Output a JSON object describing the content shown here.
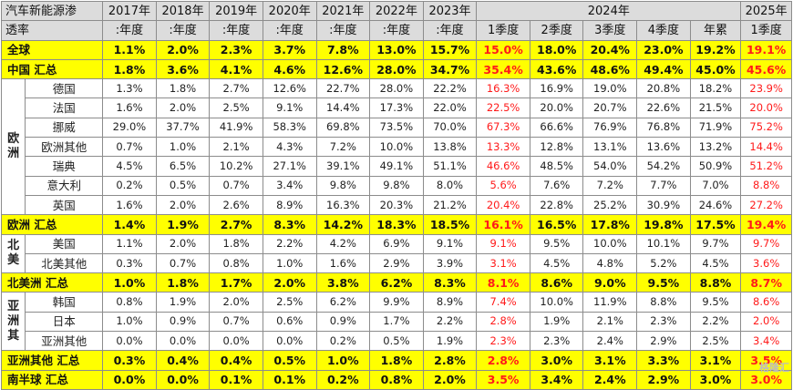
{
  "table": {
    "title_line1": "汽车新能源渗",
    "title_line2": "透率",
    "years": [
      "2017年",
      "2018年",
      "2019年",
      "2020年",
      "2021年",
      "2022年",
      "2023年"
    ],
    "year_2024": "2024年",
    "year_2025": "2025年",
    "sub_annual": ":年度",
    "sub_2024": [
      "1季度",
      "2季度",
      "3季度",
      "4季度",
      "年累"
    ],
    "sub_2025": "1季度",
    "rows": [
      {
        "label": "全球",
        "summary": true,
        "values": [
          "1.1%",
          "2.0%",
          "2.3%",
          "3.7%",
          "7.8%",
          "13.0%",
          "15.7%",
          "15.0%",
          "18.0%",
          "20.4%",
          "23.0%",
          "19.2%",
          "19.1%"
        ]
      },
      {
        "label": "中国 汇总",
        "summary": true,
        "values": [
          "1.8%",
          "3.6%",
          "4.1%",
          "4.6%",
          "12.6%",
          "28.0%",
          "34.7%",
          "35.4%",
          "43.6%",
          "48.6%",
          "49.4%",
          "45.0%",
          "45.6%"
        ]
      },
      {
        "label": "德国",
        "region": "欧洲",
        "values": [
          "1.3%",
          "1.8%",
          "2.7%",
          "12.6%",
          "22.7%",
          "28.0%",
          "22.2%",
          "16.3%",
          "16.9%",
          "19.0%",
          "20.8%",
          "18.2%",
          "23.9%"
        ]
      },
      {
        "label": "法国",
        "values": [
          "1.6%",
          "2.0%",
          "2.5%",
          "9.1%",
          "14.4%",
          "17.3%",
          "22.0%",
          "22.5%",
          "20.0%",
          "20.7%",
          "22.6%",
          "21.5%",
          "20.0%"
        ]
      },
      {
        "label": "挪威",
        "values": [
          "29.0%",
          "37.7%",
          "41.9%",
          "58.3%",
          "69.8%",
          "73.5%",
          "70.0%",
          "67.3%",
          "66.6%",
          "76.9%",
          "76.8%",
          "71.9%",
          "75.2%"
        ]
      },
      {
        "label": "欧洲其他",
        "values": [
          "0.7%",
          "1.0%",
          "2.1%",
          "4.3%",
          "7.2%",
          "10.0%",
          "13.8%",
          "13.3%",
          "12.8%",
          "13.1%",
          "13.6%",
          "13.2%",
          "14.4%"
        ]
      },
      {
        "label": "瑞典",
        "values": [
          "4.5%",
          "6.5%",
          "10.2%",
          "27.1%",
          "39.1%",
          "49.1%",
          "51.1%",
          "46.6%",
          "48.5%",
          "54.0%",
          "54.2%",
          "50.9%",
          "51.2%"
        ]
      },
      {
        "label": "意大利",
        "values": [
          "0.2%",
          "0.5%",
          "0.7%",
          "3.4%",
          "9.8%",
          "9.8%",
          "8.0%",
          "5.6%",
          "7.6%",
          "7.2%",
          "7.7%",
          "7.0%",
          "8.8%"
        ]
      },
      {
        "label": "英国",
        "values": [
          "1.6%",
          "2.0%",
          "2.6%",
          "8.9%",
          "16.3%",
          "20.3%",
          "21.2%",
          "20.4%",
          "22.8%",
          "25.2%",
          "30.9%",
          "24.6%",
          "27.2%"
        ]
      },
      {
        "label": "欧洲 汇总",
        "summary": true,
        "values": [
          "1.4%",
          "1.9%",
          "2.7%",
          "8.3%",
          "14.2%",
          "18.3%",
          "18.5%",
          "16.1%",
          "16.5%",
          "17.8%",
          "19.8%",
          "17.5%",
          "19.4%"
        ]
      },
      {
        "label": "美国",
        "region": "北美",
        "values": [
          "1.1%",
          "2.0%",
          "1.8%",
          "2.2%",
          "4.2%",
          "6.9%",
          "9.1%",
          "9.1%",
          "9.5%",
          "10.0%",
          "10.1%",
          "9.7%",
          "9.7%"
        ]
      },
      {
        "label": "北美其他",
        "values": [
          "0.3%",
          "0.7%",
          "0.8%",
          "1.0%",
          "1.6%",
          "2.9%",
          "3.9%",
          "3.1%",
          "4.5%",
          "4.8%",
          "5.2%",
          "4.5%",
          "3.6%"
        ]
      },
      {
        "label": "北美洲 汇总",
        "summary": true,
        "values": [
          "1.0%",
          "1.8%",
          "1.7%",
          "2.0%",
          "3.8%",
          "6.2%",
          "8.3%",
          "8.1%",
          "8.6%",
          "9.0%",
          "9.5%",
          "8.8%",
          "8.7%"
        ]
      },
      {
        "label": "韩国",
        "region": "亚洲其",
        "values": [
          "0.8%",
          "1.9%",
          "2.0%",
          "2.5%",
          "6.2%",
          "9.9%",
          "8.9%",
          "7.4%",
          "10.0%",
          "11.9%",
          "8.8%",
          "9.5%",
          "8.6%"
        ]
      },
      {
        "label": "日本",
        "values": [
          "1.0%",
          "0.9%",
          "0.7%",
          "0.6%",
          "0.9%",
          "1.7%",
          "2.2%",
          "2.8%",
          "1.9%",
          "2.1%",
          "2.3%",
          "2.2%",
          "2.0%"
        ]
      },
      {
        "label": "亚洲其他",
        "values": [
          "0.0%",
          "0.0%",
          "0.0%",
          "0.0%",
          "0.2%",
          "0.5%",
          "1.9%",
          "2.3%",
          "2.3%",
          "2.4%",
          "2.9%",
          "2.5%",
          "3.4%"
        ]
      },
      {
        "label": "亚洲其他 汇总",
        "summary": true,
        "values": [
          "0.3%",
          "0.4%",
          "0.4%",
          "0.5%",
          "1.0%",
          "1.8%",
          "2.8%",
          "2.8%",
          "3.0%",
          "3.1%",
          "3.3%",
          "3.1%",
          "3.5%"
        ]
      },
      {
        "label": "南半球 汇总",
        "summary": true,
        "values": [
          "0.0%",
          "0.0%",
          "0.1%",
          "0.1%",
          "0.2%",
          "0.8%",
          "2.0%",
          "3.5%",
          "3.4%",
          "2.4%",
          "2.9%",
          "3.0%",
          "3.0%"
        ]
      }
    ],
    "red_columns": [
      7,
      12
    ]
  },
  "watermark": "格隆汇"
}
